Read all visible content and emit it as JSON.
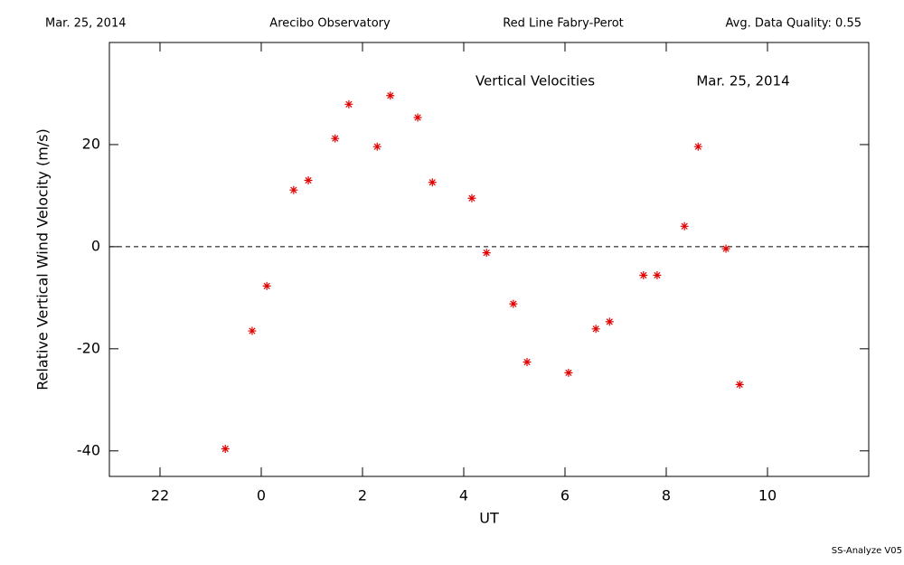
{
  "header": {
    "date": "Mar. 25, 2014",
    "site": "Arecibo Observatory",
    "instrument": "Red Line Fabry-Perot",
    "quality": "Avg. Data Quality: 0.55"
  },
  "footer": "SS-Analyze V05",
  "chart_data": {
    "type": "scatter",
    "title": "Vertical Velocities",
    "subtitle": "Mar. 25, 2014",
    "x_label": "UT",
    "y_label": "Relative Vertical Wind Velocity (m/s)",
    "xlim": [
      -3,
      12
    ],
    "ylim": [
      -45,
      40
    ],
    "xticks": [
      {
        "value": -2,
        "label": "22"
      },
      0,
      2,
      4,
      6,
      8,
      10
    ],
    "yticks": [
      -40,
      -20,
      0,
      20
    ],
    "reference_line": 0,
    "series": [
      {
        "name": "Vertical Velocities",
        "color": "#e00000",
        "x": [
          -0.71,
          -0.18,
          0.11,
          0.64,
          0.93,
          1.46,
          1.73,
          2.29,
          2.55,
          3.09,
          3.38,
          4.16,
          4.45,
          4.98,
          5.25,
          6.07,
          6.61,
          6.88,
          7.55,
          7.82,
          8.36,
          8.63,
          9.18,
          9.45
        ],
        "values": [
          -39.6,
          -16.5,
          -7.7,
          11.1,
          13.0,
          21.2,
          27.9,
          19.6,
          29.6,
          25.3,
          12.6,
          9.5,
          -1.2,
          -11.2,
          -22.6,
          -24.7,
          -16.1,
          -14.7,
          -5.6,
          -5.6,
          4.0,
          19.6,
          -0.4,
          -27.0
        ]
      }
    ]
  }
}
